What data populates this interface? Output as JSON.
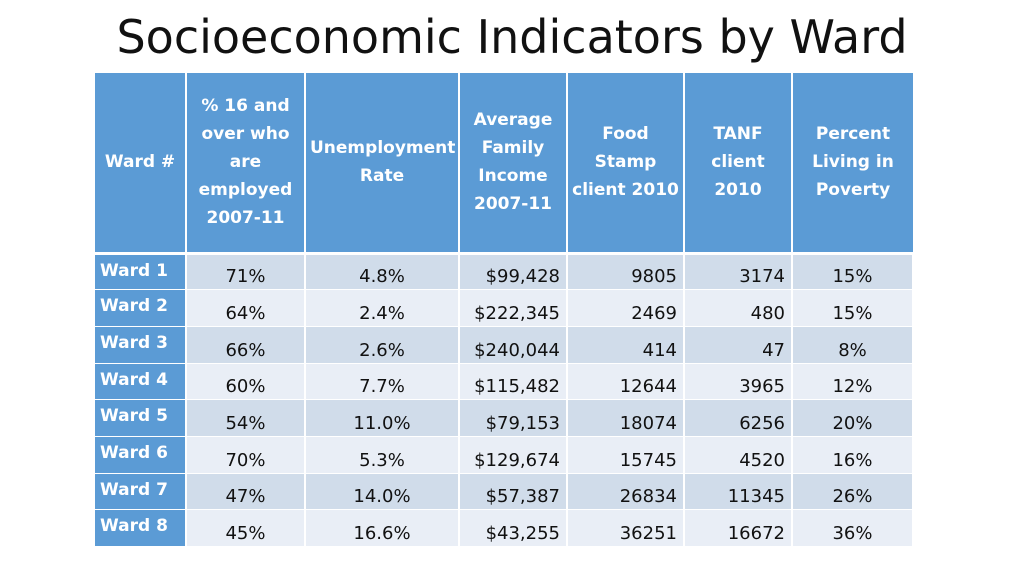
{
  "title": "Socioeconomic Indicators by Ward",
  "table": {
    "headers": [
      "Ward #",
      "% 16 and over who are employed 2007-11",
      "Unemployment Rate",
      "Average Family Income 2007-11",
      "Food Stamp client 2010",
      "TANF client 2010",
      "Percent Living in Poverty"
    ],
    "rows": [
      [
        "Ward 1",
        "71%",
        "4.8%",
        "$99,428",
        "9805",
        "3174",
        "15%"
      ],
      [
        "Ward 2",
        "64%",
        "2.4%",
        "$222,345",
        "2469",
        "480",
        "15%"
      ],
      [
        "Ward 3",
        "66%",
        "2.6%",
        "$240,044",
        "414",
        "47",
        "8%"
      ],
      [
        "Ward 4",
        "60%",
        "7.7%",
        "$115,482",
        "12644",
        "3965",
        "12%"
      ],
      [
        "Ward 5",
        "54%",
        "11.0%",
        "$79,153",
        "18074",
        "6256",
        "20%"
      ],
      [
        "Ward 6",
        "70%",
        "5.3%",
        "$129,674",
        "15745",
        "4520",
        "16%"
      ],
      [
        "Ward 7",
        "47%",
        "14.0%",
        "$57,387",
        "26834",
        "11345",
        "26%"
      ],
      [
        "Ward 8",
        "45%",
        "16.6%",
        "$43,255",
        "36251",
        "16672",
        "36%"
      ]
    ]
  },
  "colors": {
    "header_bg": "#5b9bd5",
    "row_odd": "#d0dcea",
    "row_even": "#e9eef6"
  }
}
